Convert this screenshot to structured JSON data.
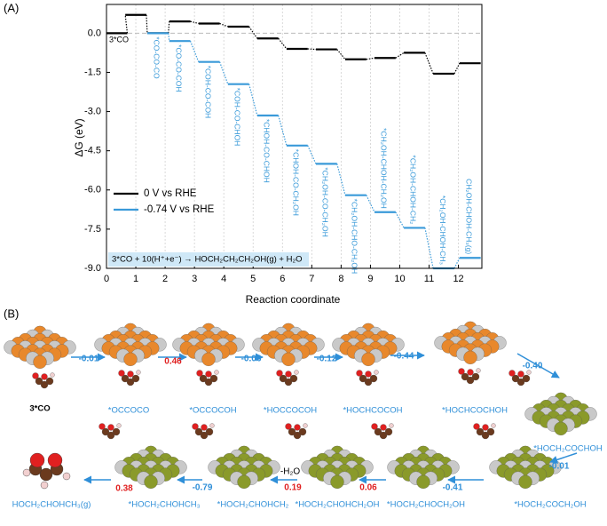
{
  "chart_data": {
    "type": "energy-levels",
    "panel_label": "(A)",
    "xlabel": "Reaction coordinate",
    "ylabel": "ΔG (eV)",
    "xlim": [
      0,
      12.8
    ],
    "ylim": [
      -9,
      1.1
    ],
    "xticks": [
      0,
      1,
      2,
      3,
      4,
      5,
      6,
      7,
      8,
      9,
      10,
      11,
      12
    ],
    "yticks": [
      {
        "value": 0,
        "label": "0.0"
      },
      {
        "value": -1.5,
        "label": "-1.5"
      },
      {
        "value": -3,
        "label": "-3.0"
      },
      {
        "value": -4.5,
        "label": "-4.5"
      },
      {
        "value": -6,
        "label": "-6.0"
      },
      {
        "value": -7.5,
        "label": "-7.5"
      },
      {
        "value": -9,
        "label": "-9.0"
      }
    ],
    "grid": true,
    "legend": "lower left",
    "start_label": "3*CO",
    "reaction": "3*CO + 10(H⁺+e⁻) → HOCH₂CH₂CH₂OH(g) + H₂O",
    "series": [
      {
        "name": "0 V vs RHE",
        "color": "#000000",
        "x": [
          0.35,
          1,
          1.75,
          2.5,
          3.5,
          4.5,
          5.5,
          6.5,
          7.5,
          8.5,
          9.5,
          10.5,
          11.5,
          12.4
        ],
        "values": [
          0,
          0.7,
          0,
          0.45,
          0.37,
          0.25,
          -0.2,
          -0.6,
          -0.62,
          -1.0,
          -0.95,
          -0.75,
          -1.55,
          -1.15
        ]
      },
      {
        "name": "-0.74 V vs RHE",
        "color": "#3a9ad9",
        "x": [
          1.75,
          2.5,
          3.5,
          4.5,
          5.5,
          6.5,
          7.5,
          8.5,
          9.5,
          10.5,
          11.5,
          12.4
        ],
        "values": [
          0,
          -0.3,
          -1.1,
          -1.95,
          -3.15,
          -4.3,
          -5.0,
          -6.2,
          -6.85,
          -7.45,
          -9.0,
          -8.6
        ],
        "level_labels": [
          "*CO-CO-CO",
          "*CO-CO-COH",
          "*COH-CO-COH",
          "*COH-CO-CHOH",
          "*CHOH-CO-CHOH",
          "*CHOH-CO-CH₂OH",
          "*CH₂OH-CO-CH₂OH",
          "*CH₂OH-CHO-CH₂OH",
          "*CH₂OH-CHOH-CH₂OH",
          "*CH₂OH-CHOH-CH₂",
          "*CH₂OH-CHOH-CH₃",
          "CH₂OH-CHOH-CH₃(g)"
        ]
      }
    ]
  },
  "panel_b": {
    "label": "(B)",
    "structures": [
      "3*CO",
      "*OCCOCO",
      "*OCCOCOH",
      "*HOCCOCOH",
      "*HOCHCOCOH",
      "*HOCHCOCHOH",
      "*HOCH₂COCHOH",
      "*HOCH₂COCH₂OH",
      "*HOCH₂CHOCH₂OH",
      "*HOCH₂CHOHCH₂OH",
      "*HOCH₂CHOHCH₂",
      "*HOCH₂CHOHCH₃",
      "HOCH₂CHOHCH₃(g)"
    ],
    "steps": [
      {
        "text": "-0.01",
        "color": "#2f8fd8"
      },
      {
        "text": "0.46",
        "color": "#e02020"
      },
      {
        "text": "-0.06",
        "color": "#2f8fd8"
      },
      {
        "text": "-0.12",
        "color": "#2f8fd8"
      },
      {
        "text": "-0.44",
        "color": "#2f8fd8"
      },
      {
        "text": "-0.40",
        "color": "#2f8fd8"
      },
      {
        "text": "-0.01",
        "color": "#2f8fd8"
      },
      {
        "text": "-0.41",
        "color": "#2f8fd8"
      },
      {
        "text": "0.06",
        "color": "#e02020"
      },
      {
        "text": "0.19",
        "color": "#e02020"
      },
      {
        "text": "-0.79",
        "color": "#2f8fd8"
      },
      {
        "text": "0.38",
        "color": "#e02020"
      }
    ],
    "water_note": "-H₂O"
  }
}
